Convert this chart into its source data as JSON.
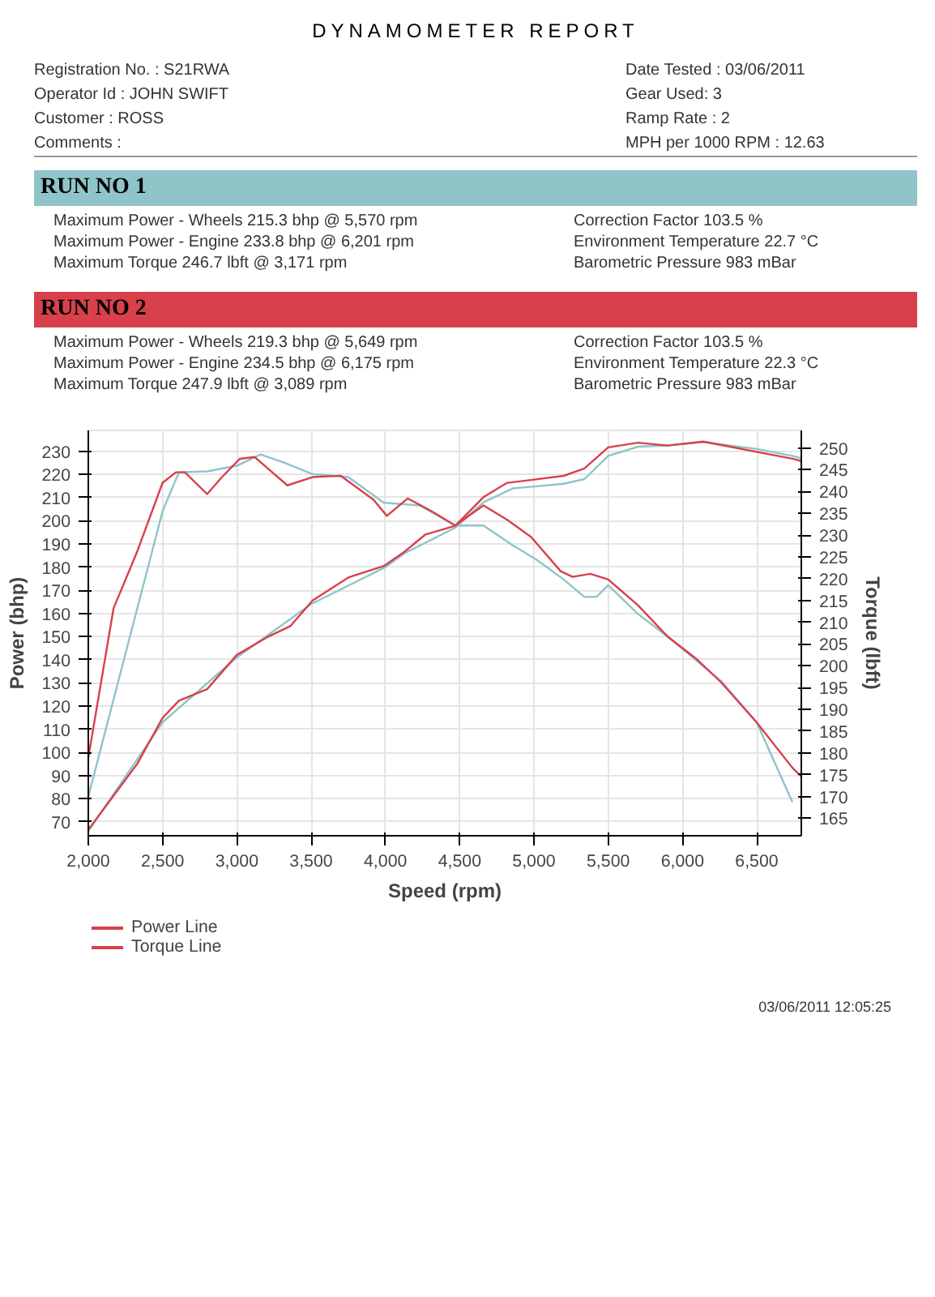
{
  "chart_data": {
    "type": "line",
    "title": "DYNAMOMETER REPORT",
    "xlabel": "Speed (rpm)",
    "ylabel": "Power (bhp)",
    "y2label": "Torque (lbft)",
    "xlim": [
      2000,
      6800
    ],
    "xticks": [
      {
        "value": 2000,
        "label": "2,000"
      },
      {
        "value": 2500,
        "label": "2,500"
      },
      {
        "value": 3000,
        "label": "3,000"
      },
      {
        "value": 3500,
        "label": "3,500"
      },
      {
        "value": 4000,
        "label": "4,000"
      },
      {
        "value": 4500,
        "label": "4,500"
      },
      {
        "value": 5000,
        "label": "5,000"
      },
      {
        "value": 5500,
        "label": "5,500"
      },
      {
        "value": 6000,
        "label": "6,000"
      },
      {
        "value": 6500,
        "label": "6,500"
      }
    ],
    "ylim": [
      64,
      239
    ],
    "yticks": [
      70,
      80,
      90,
      100,
      110,
      120,
      130,
      140,
      150,
      160,
      170,
      180,
      190,
      200,
      210,
      220,
      230
    ],
    "y2lim": [
      161,
      254
    ],
    "y2ticks": [
      165,
      170,
      175,
      180,
      185,
      190,
      195,
      200,
      205,
      210,
      215,
      220,
      225,
      230,
      235,
      240,
      245,
      250
    ],
    "grid": true,
    "legend": "bottom",
    "marker": "none",
    "line_style": "solid",
    "series": [
      {
        "color": "#8fc4c8",
        "x": [
          2000,
          2500,
          3000,
          3500,
          4000,
          4130,
          4470,
          4660,
          4860,
          5040,
          5200,
          5340,
          5500,
          5700,
          5900,
          6140,
          6500,
          6740,
          6800
        ],
        "values": [
          66,
          113,
          141,
          164,
          180,
          186,
          197,
          208,
          214,
          215,
          216,
          218,
          228,
          232,
          232.5,
          234,
          231,
          228,
          227
        ]
      },
      {
        "name": "Power Line",
        "color": "#d8404c",
        "x": [
          2000,
          2130,
          2330,
          2500,
          2610,
          2800,
          3000,
          3200,
          3360,
          3510,
          3750,
          3990,
          4130,
          4270,
          4470,
          4660,
          4820,
          4980,
          5200,
          5340,
          5500,
          5700,
          5900,
          6140,
          6740,
          6800
        ],
        "values": [
          66.6,
          77.8,
          95.1,
          114.9,
          122.3,
          127.3,
          142.1,
          149.6,
          154.5,
          165.6,
          175.5,
          180.5,
          186.7,
          194.1,
          197.8,
          210.2,
          216.4,
          217.6,
          219.4,
          222.6,
          231.7,
          233.7,
          232.5,
          234.2,
          226.8,
          225.8
        ]
      },
      {
        "axis": "y2",
        "color": "#8fc4c8",
        "x": [
          2000,
          2500,
          2610,
          2800,
          3000,
          3160,
          3320,
          3510,
          3750,
          3990,
          4230,
          4470,
          4660,
          4860,
          5020,
          5200,
          5340,
          5420,
          5500,
          5700,
          5900,
          6260,
          6500,
          6740
        ],
        "values": [
          170,
          235.5,
          244.4,
          244.6,
          245.9,
          248.5,
          246.6,
          244,
          243.3,
          237.4,
          236.8,
          232.2,
          232.2,
          227.6,
          224.3,
          219.8,
          215.8,
          215.8,
          218.5,
          211.9,
          206.7,
          196.5,
          187,
          168.7
        ]
      },
      {
        "name": "Torque Line",
        "axis": "y2",
        "color": "#d8404c",
        "x": [
          2000,
          2170,
          2330,
          2500,
          2590,
          2650,
          2800,
          2900,
          3020,
          3120,
          3340,
          3510,
          3700,
          3920,
          4010,
          4150,
          4310,
          4470,
          4660,
          4820,
          4980,
          5180,
          5260,
          5380,
          5500,
          5700,
          5900,
          6100,
          6260,
          6500,
          6740,
          6800
        ],
        "values": [
          178.9,
          213.2,
          226.3,
          242,
          244.4,
          244.4,
          239.4,
          243.3,
          247.5,
          247.9,
          241.4,
          243.3,
          243.6,
          238.1,
          234.4,
          238.4,
          235.5,
          232.2,
          236.8,
          233.5,
          229.6,
          221.7,
          220.4,
          221.1,
          219.8,
          213.9,
          206.7,
          201.4,
          196.2,
          187,
          176.6,
          174.6
        ]
      }
    ],
    "annotations": [
      "Registration No. : S21RWA",
      "Operator Id : JOHN SWIFT",
      "Customer : ROSS",
      "Comments :",
      "Date Tested : 03/06/2011",
      "Gear Used: 3",
      "Ramp Rate : 2",
      "MPH per 1000 RPM : 12.63",
      "RUN NO 1",
      "Maximum Power - Wheels 215.3 bhp @ 5,570 rpm",
      "Maximum Power - Engine 233.8 bhp @ 6,201 rpm",
      "Maximum Torque 246.7 lbft @ 3,171 rpm",
      "Correction Factor 103.5 %",
      "Environment Temperature 22.7 °C",
      "Barometric Pressure 983 mBar",
      "RUN NO 2",
      "Maximum Power - Wheels 219.3 bhp @ 5,649 rpm",
      "Maximum Power - Engine 234.5 bhp @ 6,175 rpm",
      "Maximum Torque 247.9 lbft @ 3,089 rpm",
      "Correction Factor 103.5 %",
      "Environment Temperature 22.3 °C",
      "Barometric Pressure 983 mBar",
      "03/06/2011 12:05:25"
    ]
  }
}
